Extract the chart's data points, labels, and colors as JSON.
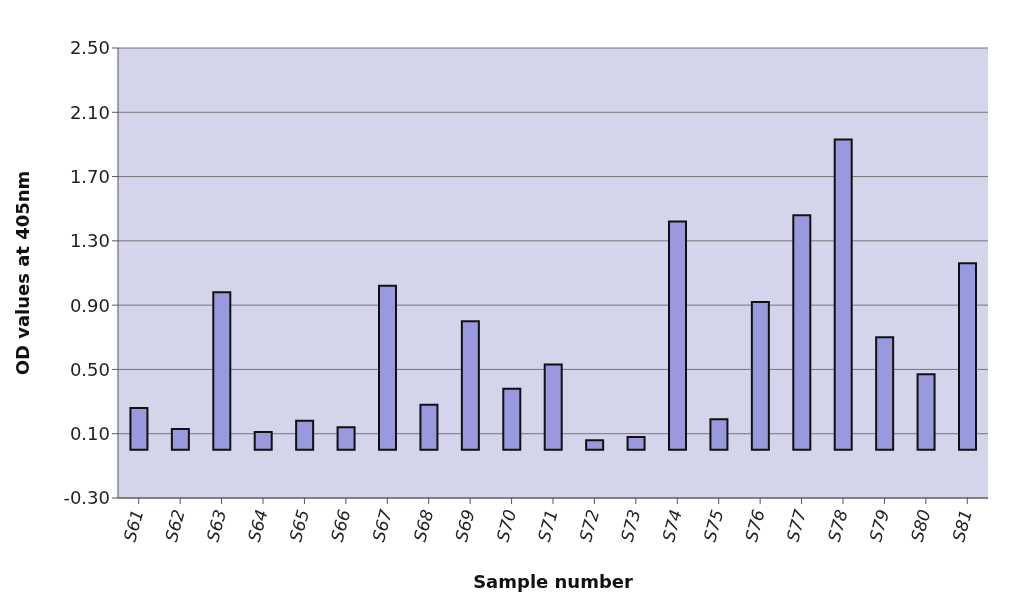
{
  "chart_data": {
    "type": "bar",
    "xlabel": "Sample number",
    "ylabel": "OD values at 405nm",
    "categories": [
      "S61",
      "S62",
      "S63",
      "S64",
      "S65",
      "S66",
      "S67",
      "S68",
      "S69",
      "S70",
      "S71",
      "S72",
      "S73",
      "S74",
      "S75",
      "S76",
      "S77",
      "S78",
      "S79",
      "S80",
      "S81"
    ],
    "values": [
      0.26,
      0.13,
      0.98,
      0.11,
      0.18,
      0.14,
      1.02,
      0.28,
      0.8,
      0.38,
      0.53,
      0.06,
      0.08,
      1.42,
      0.19,
      0.92,
      1.46,
      1.93,
      0.7,
      0.47,
      1.16
    ],
    "color": "#9999dd",
    "ylim": [
      -0.3,
      2.5
    ],
    "yticks": [
      {
        "value": -0.3,
        "label": "-0.30"
      },
      {
        "value": 0.1,
        "label": "0.10"
      },
      {
        "value": 0.5,
        "label": "0.50"
      },
      {
        "value": 0.9,
        "label": "0.90"
      },
      {
        "value": 1.3,
        "label": "1.30"
      },
      {
        "value": 1.7,
        "label": "1.70"
      },
      {
        "value": 2.1,
        "label": "2.10"
      },
      {
        "value": 2.5,
        "label": "2.50"
      }
    ],
    "grid": "y"
  }
}
